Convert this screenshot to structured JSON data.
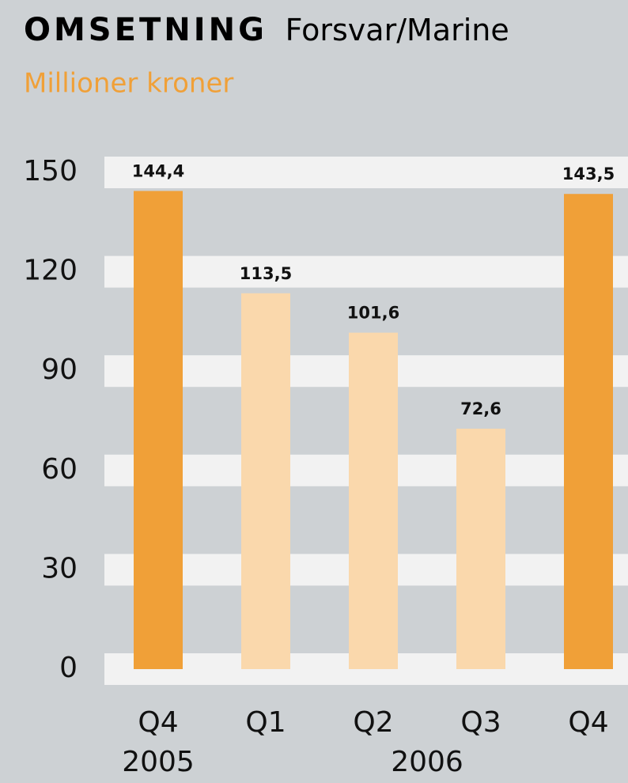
{
  "chart_data": {
    "type": "bar",
    "title": "OMSETNING",
    "title_detail": "Forsvar/Marine",
    "subtitle": "Millioner kroner",
    "categories": [
      "Q4",
      "Q1",
      "Q2",
      "Q3",
      "Q4"
    ],
    "groups": [
      {
        "label": "2005",
        "start": 0,
        "end": 0
      },
      {
        "label": "2006",
        "start": 1,
        "end": 4
      }
    ],
    "values": [
      144.4,
      113.5,
      101.6,
      72.6,
      143.5
    ],
    "value_labels": [
      "144,4",
      "113,5",
      "101,6",
      "72,6",
      "143,5"
    ],
    "colors": [
      "#f0a038",
      "#fad8ac",
      "#fad8ac",
      "#fad8ac",
      "#f0a038"
    ],
    "ylim": [
      0,
      150
    ],
    "yticks": [
      0,
      30,
      60,
      90,
      120,
      150
    ],
    "grid": true
  }
}
